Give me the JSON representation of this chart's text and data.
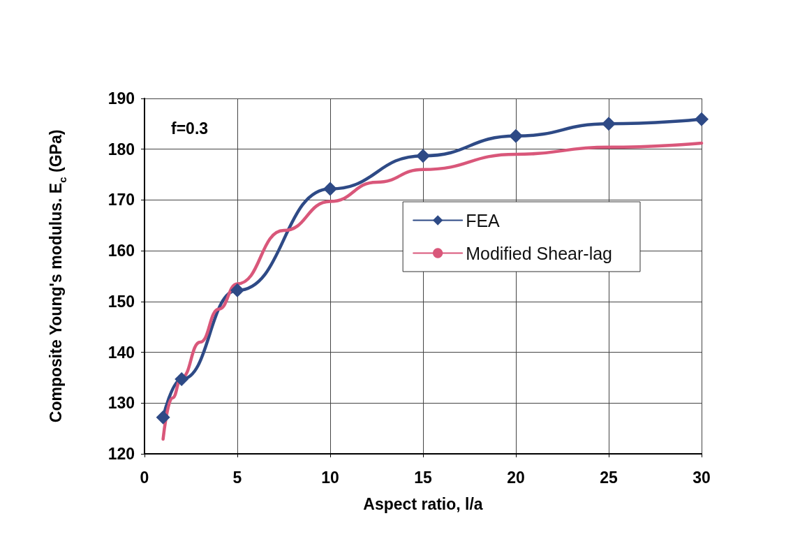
{
  "chart_data": {
    "type": "line",
    "xlabel": "Aspect ratio, l/a",
    "ylabel": "Composite Young's modulus. E$_{c}$ (GPa)",
    "annotations": [
      "f=0.3"
    ],
    "xlim": [
      0,
      30
    ],
    "xticks": [
      0,
      5,
      10,
      15,
      20,
      25,
      30
    ],
    "ylim": [
      120,
      190
    ],
    "yticks": [
      120,
      130,
      140,
      150,
      160,
      170,
      180,
      190
    ],
    "grid": true,
    "legend": "right",
    "series": [
      {
        "name": "FEA",
        "color": "#2e4a86",
        "marker": "diamond",
        "x": [
          1,
          2,
          5,
          10,
          15,
          20,
          25,
          30
        ],
        "values": [
          127.2,
          134.7,
          152.2,
          172.2,
          178.7,
          182.6,
          185.0,
          185.9
        ]
      },
      {
        "name": "Modified Shear-lag",
        "color": "#d9577a",
        "marker": "none",
        "x": [
          1,
          1.5,
          2,
          3,
          4,
          5,
          7.5,
          10,
          12.5,
          15,
          20,
          25,
          30
        ],
        "values": [
          122.9,
          131,
          135,
          142,
          148.5,
          153.5,
          164,
          169.7,
          173.5,
          176,
          179,
          180.4,
          181.2
        ]
      }
    ]
  }
}
